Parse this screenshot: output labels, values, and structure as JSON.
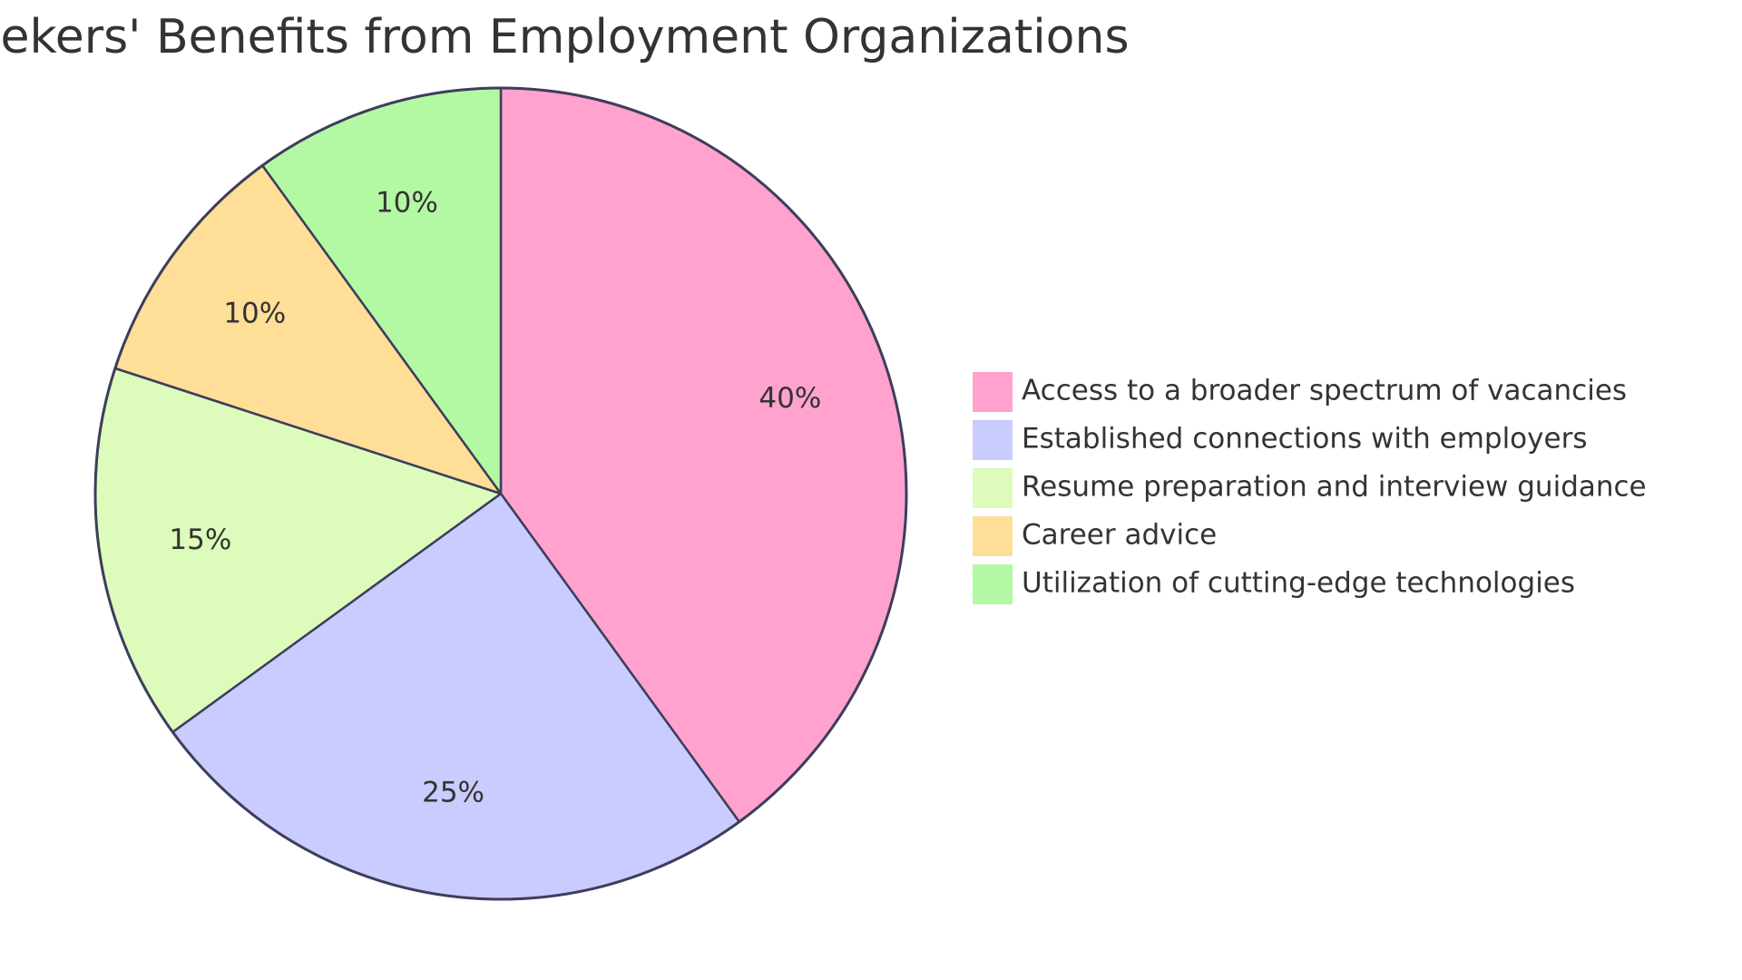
{
  "chart_data": {
    "type": "pie",
    "title": "Seekers' Benefits from Employment Organizations",
    "categories": [
      "Access to a broader spectrum of vacancies",
      "Established connections with employers",
      "Resume preparation and interview guidance",
      "Career advice",
      "Utilization of cutting-edge technologies"
    ],
    "values": [
      40,
      25,
      15,
      10,
      10
    ],
    "value_labels": [
      "40%",
      "25%",
      "15%",
      "10%",
      "10%"
    ],
    "colors": [
      "#FFA3CE",
      "#CACBFF",
      "#DDFBBA",
      "#FFDE97",
      "#B3F9A3"
    ],
    "stroke_color": "#3D3D5C",
    "legend": "right",
    "start_angle": "top",
    "direction": "clockwise"
  }
}
